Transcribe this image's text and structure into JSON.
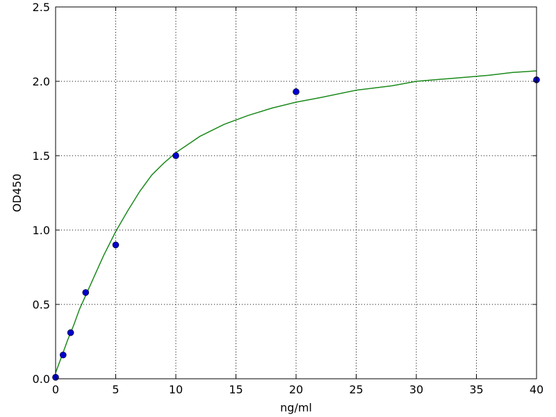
{
  "chart_data": {
    "type": "scatter",
    "xlabel": "ng/ml",
    "ylabel": "OD450",
    "xlim": [
      0,
      40
    ],
    "ylim": [
      0,
      2.5
    ],
    "xticks": [
      0,
      5,
      10,
      15,
      20,
      25,
      30,
      35,
      40
    ],
    "yticks": [
      0.0,
      0.5,
      1.0,
      1.5,
      2.0,
      2.5
    ],
    "xtick_labels": [
      "0",
      "5",
      "10",
      "15",
      "20",
      "25",
      "30",
      "35",
      "40"
    ],
    "ytick_labels": [
      "0.0",
      "0.5",
      "1.0",
      "1.5",
      "2.0",
      "2.5"
    ],
    "grid": true,
    "series": [
      {
        "kind": "points",
        "color": "#0000cc",
        "x": [
          0,
          0.625,
          1.25,
          2.5,
          5,
          10,
          20,
          40
        ],
        "y": [
          0.01,
          0.16,
          0.31,
          0.58,
          0.9,
          1.5,
          1.93,
          2.01
        ]
      },
      {
        "kind": "fitted-curve",
        "color": "#1a8a1a",
        "x": [
          0,
          0.5,
          1,
          1.5,
          2,
          2.5,
          3,
          4,
          5,
          6,
          7,
          8,
          9,
          10,
          12,
          14,
          16,
          18,
          20,
          22,
          25,
          28,
          30,
          33,
          36,
          38,
          40
        ],
        "y": [
          0.04,
          0.15,
          0.26,
          0.36,
          0.47,
          0.56,
          0.65,
          0.83,
          0.99,
          1.13,
          1.26,
          1.37,
          1.45,
          1.52,
          1.63,
          1.71,
          1.77,
          1.82,
          1.86,
          1.89,
          1.94,
          1.97,
          2.0,
          2.02,
          2.04,
          2.06,
          2.07
        ]
      }
    ]
  }
}
